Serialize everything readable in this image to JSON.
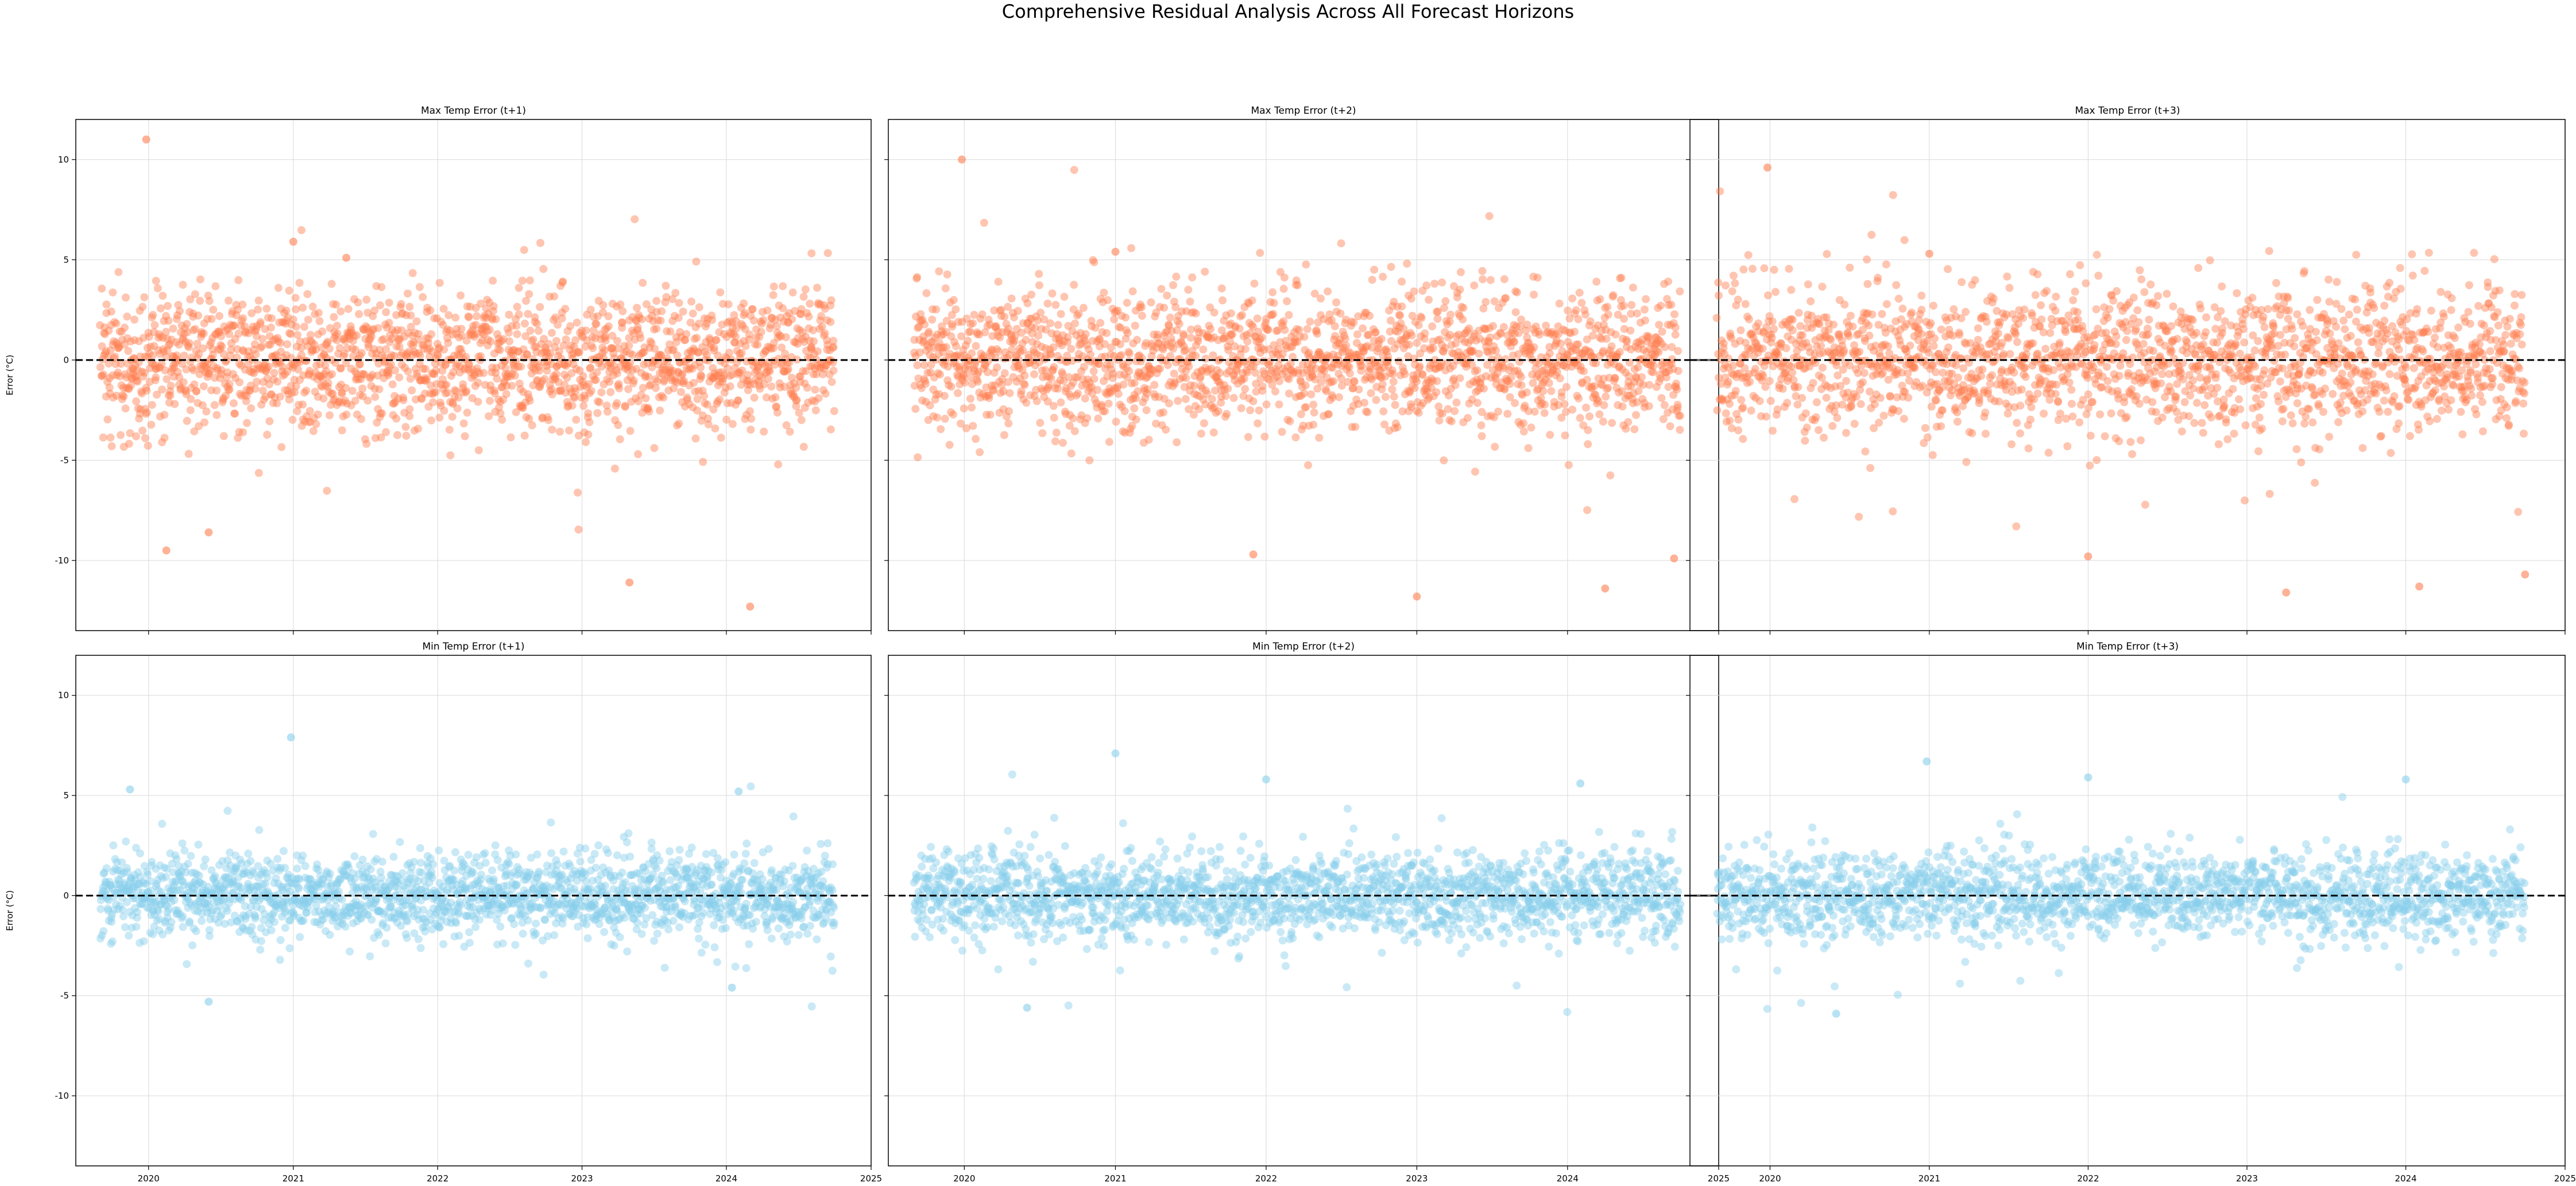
{
  "figure": {
    "suptitle": "Comprehensive Residual Analysis Across All Forecast Horizons",
    "ylabel": "Error (°C)"
  },
  "chart_data": [
    {
      "type": "scatter",
      "title": "Max Temp Error (t+1)",
      "color": "#FF7F50",
      "xlim": [
        "2019-07-01",
        "2025-01-01"
      ],
      "ylim": [
        -13.5,
        12
      ],
      "grid": true,
      "xticks": [
        "2020",
        "2021",
        "2022",
        "2023",
        "2024",
        "2025"
      ],
      "yticks": [
        -10,
        -5,
        0,
        5,
        10
      ],
      "baseline": 0,
      "series": [
        {
          "x_range": [
            "2019-09-01",
            "2024-10-01"
          ],
          "y_mean": 0,
          "y_std": 2.2
        }
      ],
      "outliers": [
        {
          "x": "2019-12-26",
          "y": 11
        },
        {
          "x": "2021-01-01",
          "y": 5.9
        },
        {
          "x": "2021-05-15",
          "y": 5.1
        },
        {
          "x": "2024-03-01",
          "y": -12.3
        },
        {
          "x": "2023-05-01",
          "y": -11.1
        },
        {
          "x": "2020-06-01",
          "y": -8.6
        },
        {
          "x": "2020-02-15",
          "y": -9.5
        }
      ]
    },
    {
      "type": "scatter",
      "title": "Max Temp Error (t+2)",
      "color": "#FF7F50",
      "xlim": [
        "2019-07-01",
        "2025-01-01"
      ],
      "ylim": [
        -13.5,
        12
      ],
      "grid": true,
      "xticks": [
        "2020",
        "2021",
        "2022",
        "2023",
        "2024",
        "2025"
      ],
      "yticks": [
        -10,
        -5,
        0,
        5,
        10
      ],
      "baseline": 0,
      "series": [
        {
          "x_range": [
            "2019-09-01",
            "2024-10-01"
          ],
          "y_mean": 0,
          "y_std": 2.3
        }
      ],
      "outliers": [
        {
          "x": "2019-12-26",
          "y": 10
        },
        {
          "x": "2021-01-01",
          "y": 5.4
        },
        {
          "x": "2023-01-01",
          "y": -11.8
        },
        {
          "x": "2024-04-01",
          "y": -11.4
        },
        {
          "x": "2024-09-15",
          "y": -9.9
        },
        {
          "x": "2021-12-01",
          "y": -9.7
        }
      ]
    },
    {
      "type": "scatter",
      "title": "Max Temp Error (t+3)",
      "color": "#FF7F50",
      "xlim": [
        "2019-07-01",
        "2025-01-01"
      ],
      "ylim": [
        -13.5,
        12
      ],
      "grid": true,
      "xticks": [
        "2020",
        "2021",
        "2022",
        "2023",
        "2024",
        "2025"
      ],
      "yticks": [
        -10,
        -5,
        0,
        5,
        10
      ],
      "baseline": 0,
      "series": [
        {
          "x_range": [
            "2019-09-01",
            "2024-10-01"
          ],
          "y_mean": 0,
          "y_std": 2.4
        }
      ],
      "outliers": [
        {
          "x": "2019-12-26",
          "y": 9.6
        },
        {
          "x": "2021-01-01",
          "y": 5.3
        },
        {
          "x": "2023-04-01",
          "y": -11.6
        },
        {
          "x": "2024-02-01",
          "y": -11.3
        },
        {
          "x": "2024-10-01",
          "y": -10.7
        },
        {
          "x": "2022-01-01",
          "y": -9.8
        }
      ]
    },
    {
      "type": "scatter",
      "title": "Min Temp Error (t+1)",
      "color": "#87CEEB",
      "xlim": [
        "2019-07-01",
        "2025-01-01"
      ],
      "ylim": [
        -13.5,
        12
      ],
      "grid": true,
      "xticks": [
        "2020",
        "2021",
        "2022",
        "2023",
        "2024",
        "2025"
      ],
      "yticks": [
        -10,
        -5,
        0,
        5,
        10
      ],
      "baseline": 0,
      "series": [
        {
          "x_range": [
            "2019-09-01",
            "2024-10-01"
          ],
          "y_mean": 0,
          "y_std": 1.3
        }
      ],
      "outliers": [
        {
          "x": "2020-12-26",
          "y": 7.9
        },
        {
          "x": "2019-11-15",
          "y": 5.3
        },
        {
          "x": "2024-02-01",
          "y": 5.2
        },
        {
          "x": "2020-06-01",
          "y": -5.3
        },
        {
          "x": "2024-01-15",
          "y": -4.6
        }
      ]
    },
    {
      "type": "scatter",
      "title": "Min Temp Error (t+2)",
      "color": "#87CEEB",
      "xlim": [
        "2019-07-01",
        "2025-01-01"
      ],
      "ylim": [
        -13.5,
        12
      ],
      "grid": true,
      "xticks": [
        "2020",
        "2021",
        "2022",
        "2023",
        "2024",
        "2025"
      ],
      "yticks": [
        -10,
        -5,
        0,
        5,
        10
      ],
      "baseline": 0,
      "series": [
        {
          "x_range": [
            "2019-09-01",
            "2024-10-01"
          ],
          "y_mean": 0,
          "y_std": 1.4
        }
      ],
      "outliers": [
        {
          "x": "2021-01-01",
          "y": 7.1
        },
        {
          "x": "2022-01-01",
          "y": 5.8
        },
        {
          "x": "2024-02-01",
          "y": 5.6
        },
        {
          "x": "2020-06-01",
          "y": -5.6
        }
      ]
    },
    {
      "type": "scatter",
      "title": "Min Temp Error (t+3)",
      "color": "#87CEEB",
      "xlim": [
        "2019-07-01",
        "2025-01-01"
      ],
      "ylim": [
        -13.5,
        12
      ],
      "grid": true,
      "xticks": [
        "2020",
        "2021",
        "2022",
        "2023",
        "2024",
        "2025"
      ],
      "yticks": [
        -10,
        -5,
        0,
        5,
        10
      ],
      "baseline": 0,
      "series": [
        {
          "x_range": [
            "2019-09-01",
            "2024-10-01"
          ],
          "y_mean": 0,
          "y_std": 1.4
        }
      ],
      "outliers": [
        {
          "x": "2020-12-26",
          "y": 6.7
        },
        {
          "x": "2022-01-01",
          "y": 5.9
        },
        {
          "x": "2024-01-01",
          "y": 5.8
        },
        {
          "x": "2020-06-01",
          "y": -5.9
        }
      ]
    }
  ]
}
